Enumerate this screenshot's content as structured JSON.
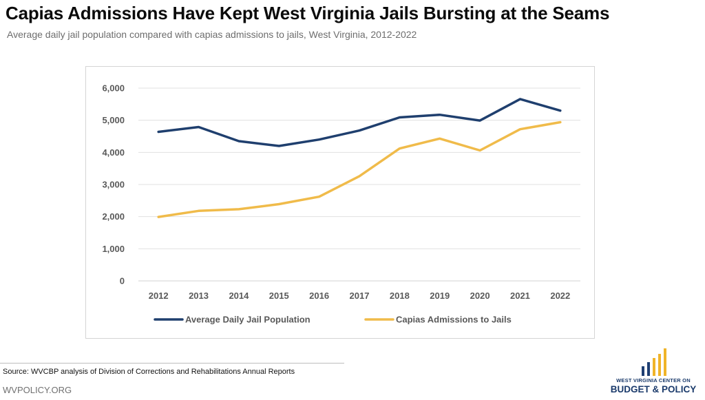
{
  "title": "Capias Admissions Have Kept West Virginia Jails Bursting at the Seams",
  "subtitle": "Average daily jail population compared with capias admissions to jails, West Virginia, 2012-2022",
  "source": "Source: WVCBP analysis of Division of Corrections and Rehabilitations Annual Reports",
  "site": "WVPOLICY.ORG",
  "logo": {
    "line1": "WEST VIRGINIA CENTER ON",
    "line2": "BUDGET & POLICY",
    "bar_colors": [
      "#1f3f73",
      "#1f3f73",
      "#f0b429",
      "#f0b429",
      "#f0b429"
    ]
  },
  "chart_data": {
    "type": "line",
    "title": "",
    "xlabel": "",
    "ylabel": "",
    "x": [
      "2012",
      "2013",
      "2014",
      "2015",
      "2016",
      "2017",
      "2018",
      "2019",
      "2020",
      "2021",
      "2022"
    ],
    "ylim": [
      0,
      6000
    ],
    "yticks": [
      0,
      1000,
      2000,
      3000,
      4000,
      5000,
      6000
    ],
    "ytick_labels": [
      "0",
      "1,000",
      "2,000",
      "3,000",
      "4,000",
      "5,000",
      "6,000"
    ],
    "grid": true,
    "legend_position": "bottom",
    "series": [
      {
        "name": "Average Daily Jail Population",
        "color": "#1f3f6e",
        "values": [
          4640,
          4790,
          4350,
          4200,
          4400,
          4680,
          5090,
          5170,
          4990,
          5660,
          5300
        ]
      },
      {
        "name": "Capias Admissions to Jails",
        "color": "#f0bb4a",
        "values": [
          1990,
          2180,
          2230,
          2390,
          2620,
          3260,
          4120,
          4430,
          4060,
          4720,
          4940
        ]
      }
    ]
  }
}
